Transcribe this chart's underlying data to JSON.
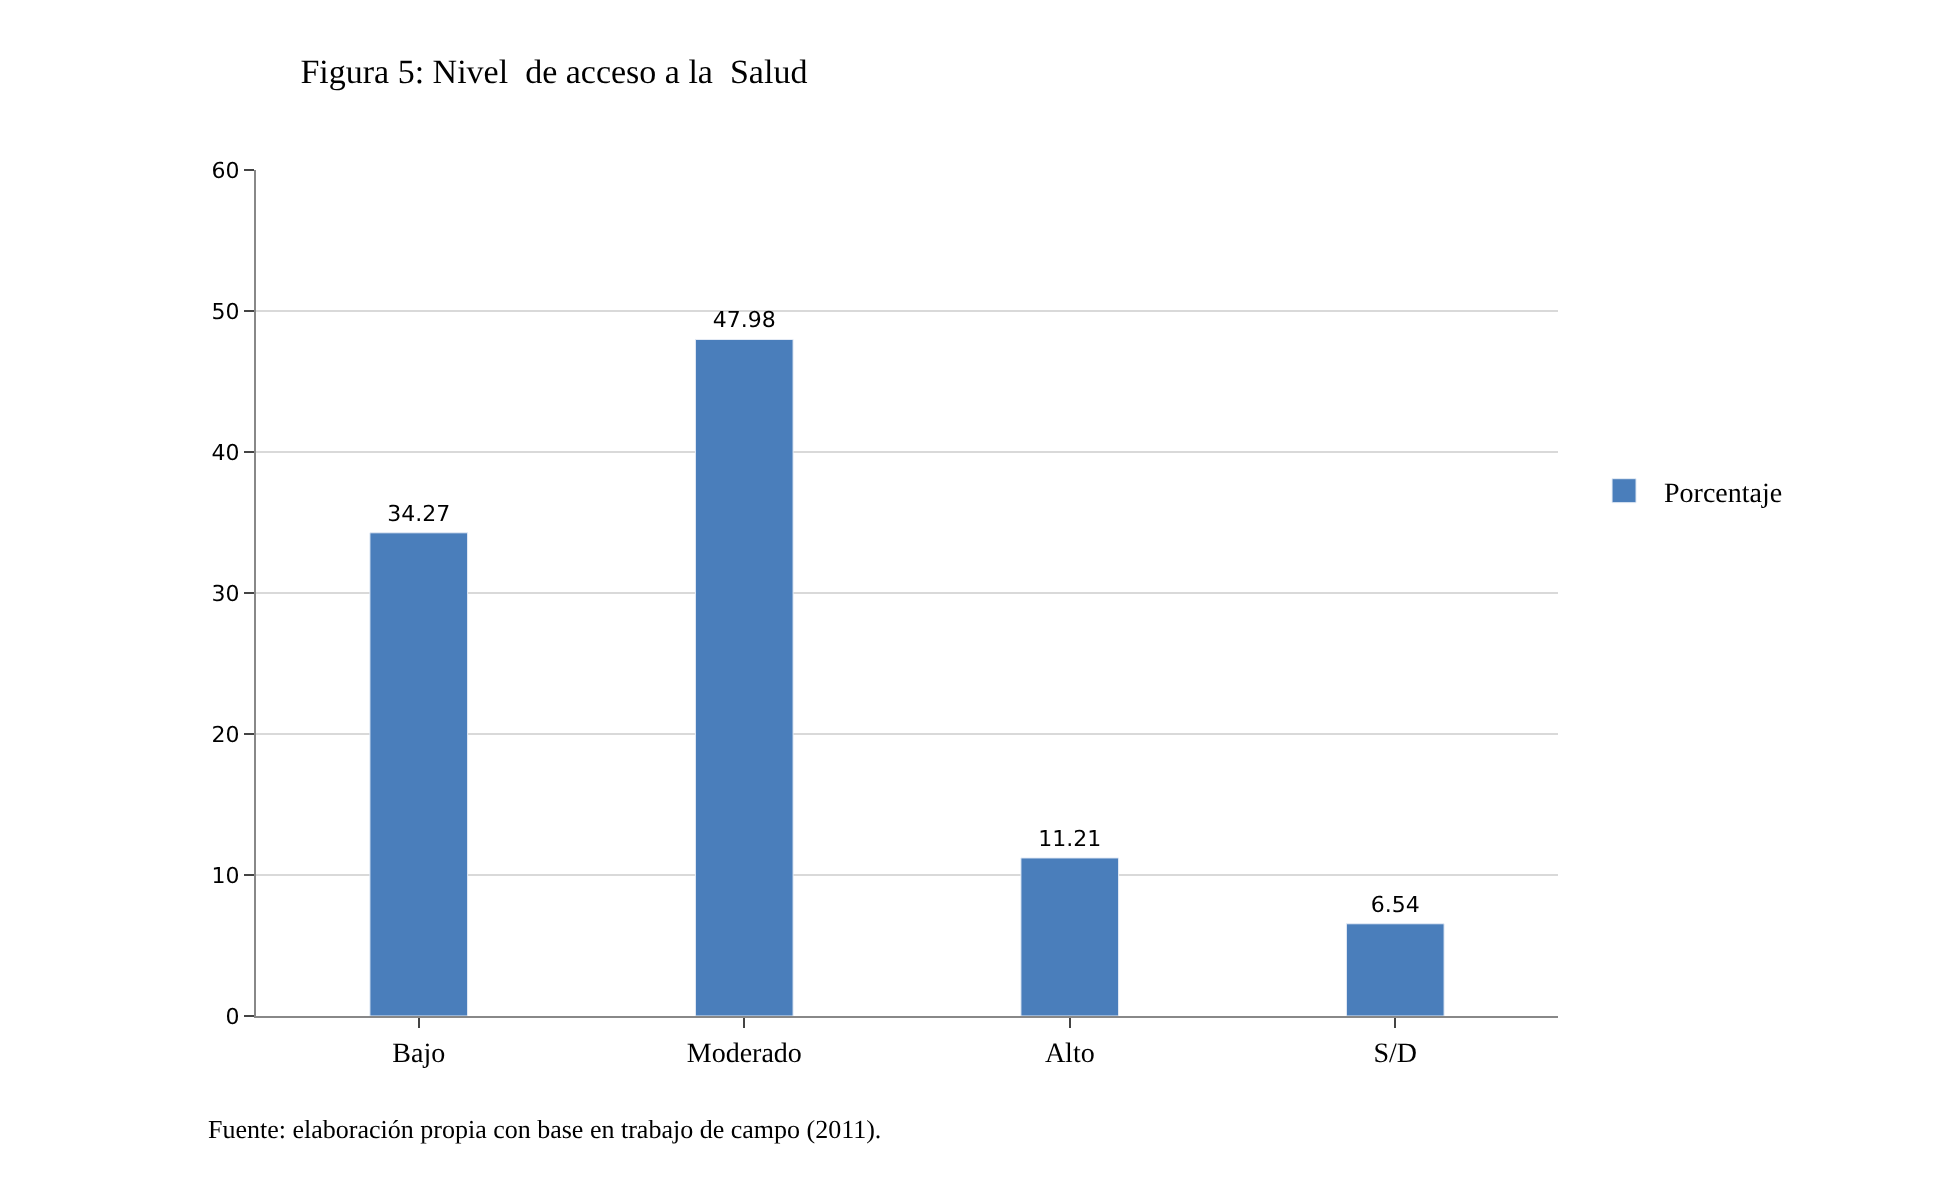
{
  "chart_data": {
    "type": "bar",
    "title": "Figura 5: Nivel  de acceso a la  Salud",
    "categories": [
      "Bajo",
      "Moderado",
      "Alto",
      "S/D"
    ],
    "series": [
      {
        "name": "Porcentaje",
        "color": "#4a7ebb",
        "values": [
          34.27,
          47.98,
          11.21,
          6.54
        ]
      }
    ],
    "ylim": [
      0,
      60
    ],
    "yticks": [
      0,
      10,
      20,
      30,
      40,
      50,
      60
    ],
    "grid": "y",
    "legend": "right",
    "data_labels": true,
    "annotations": [
      "Fuente: elaboración propia con base en trabajo de campo (2011)."
    ]
  }
}
